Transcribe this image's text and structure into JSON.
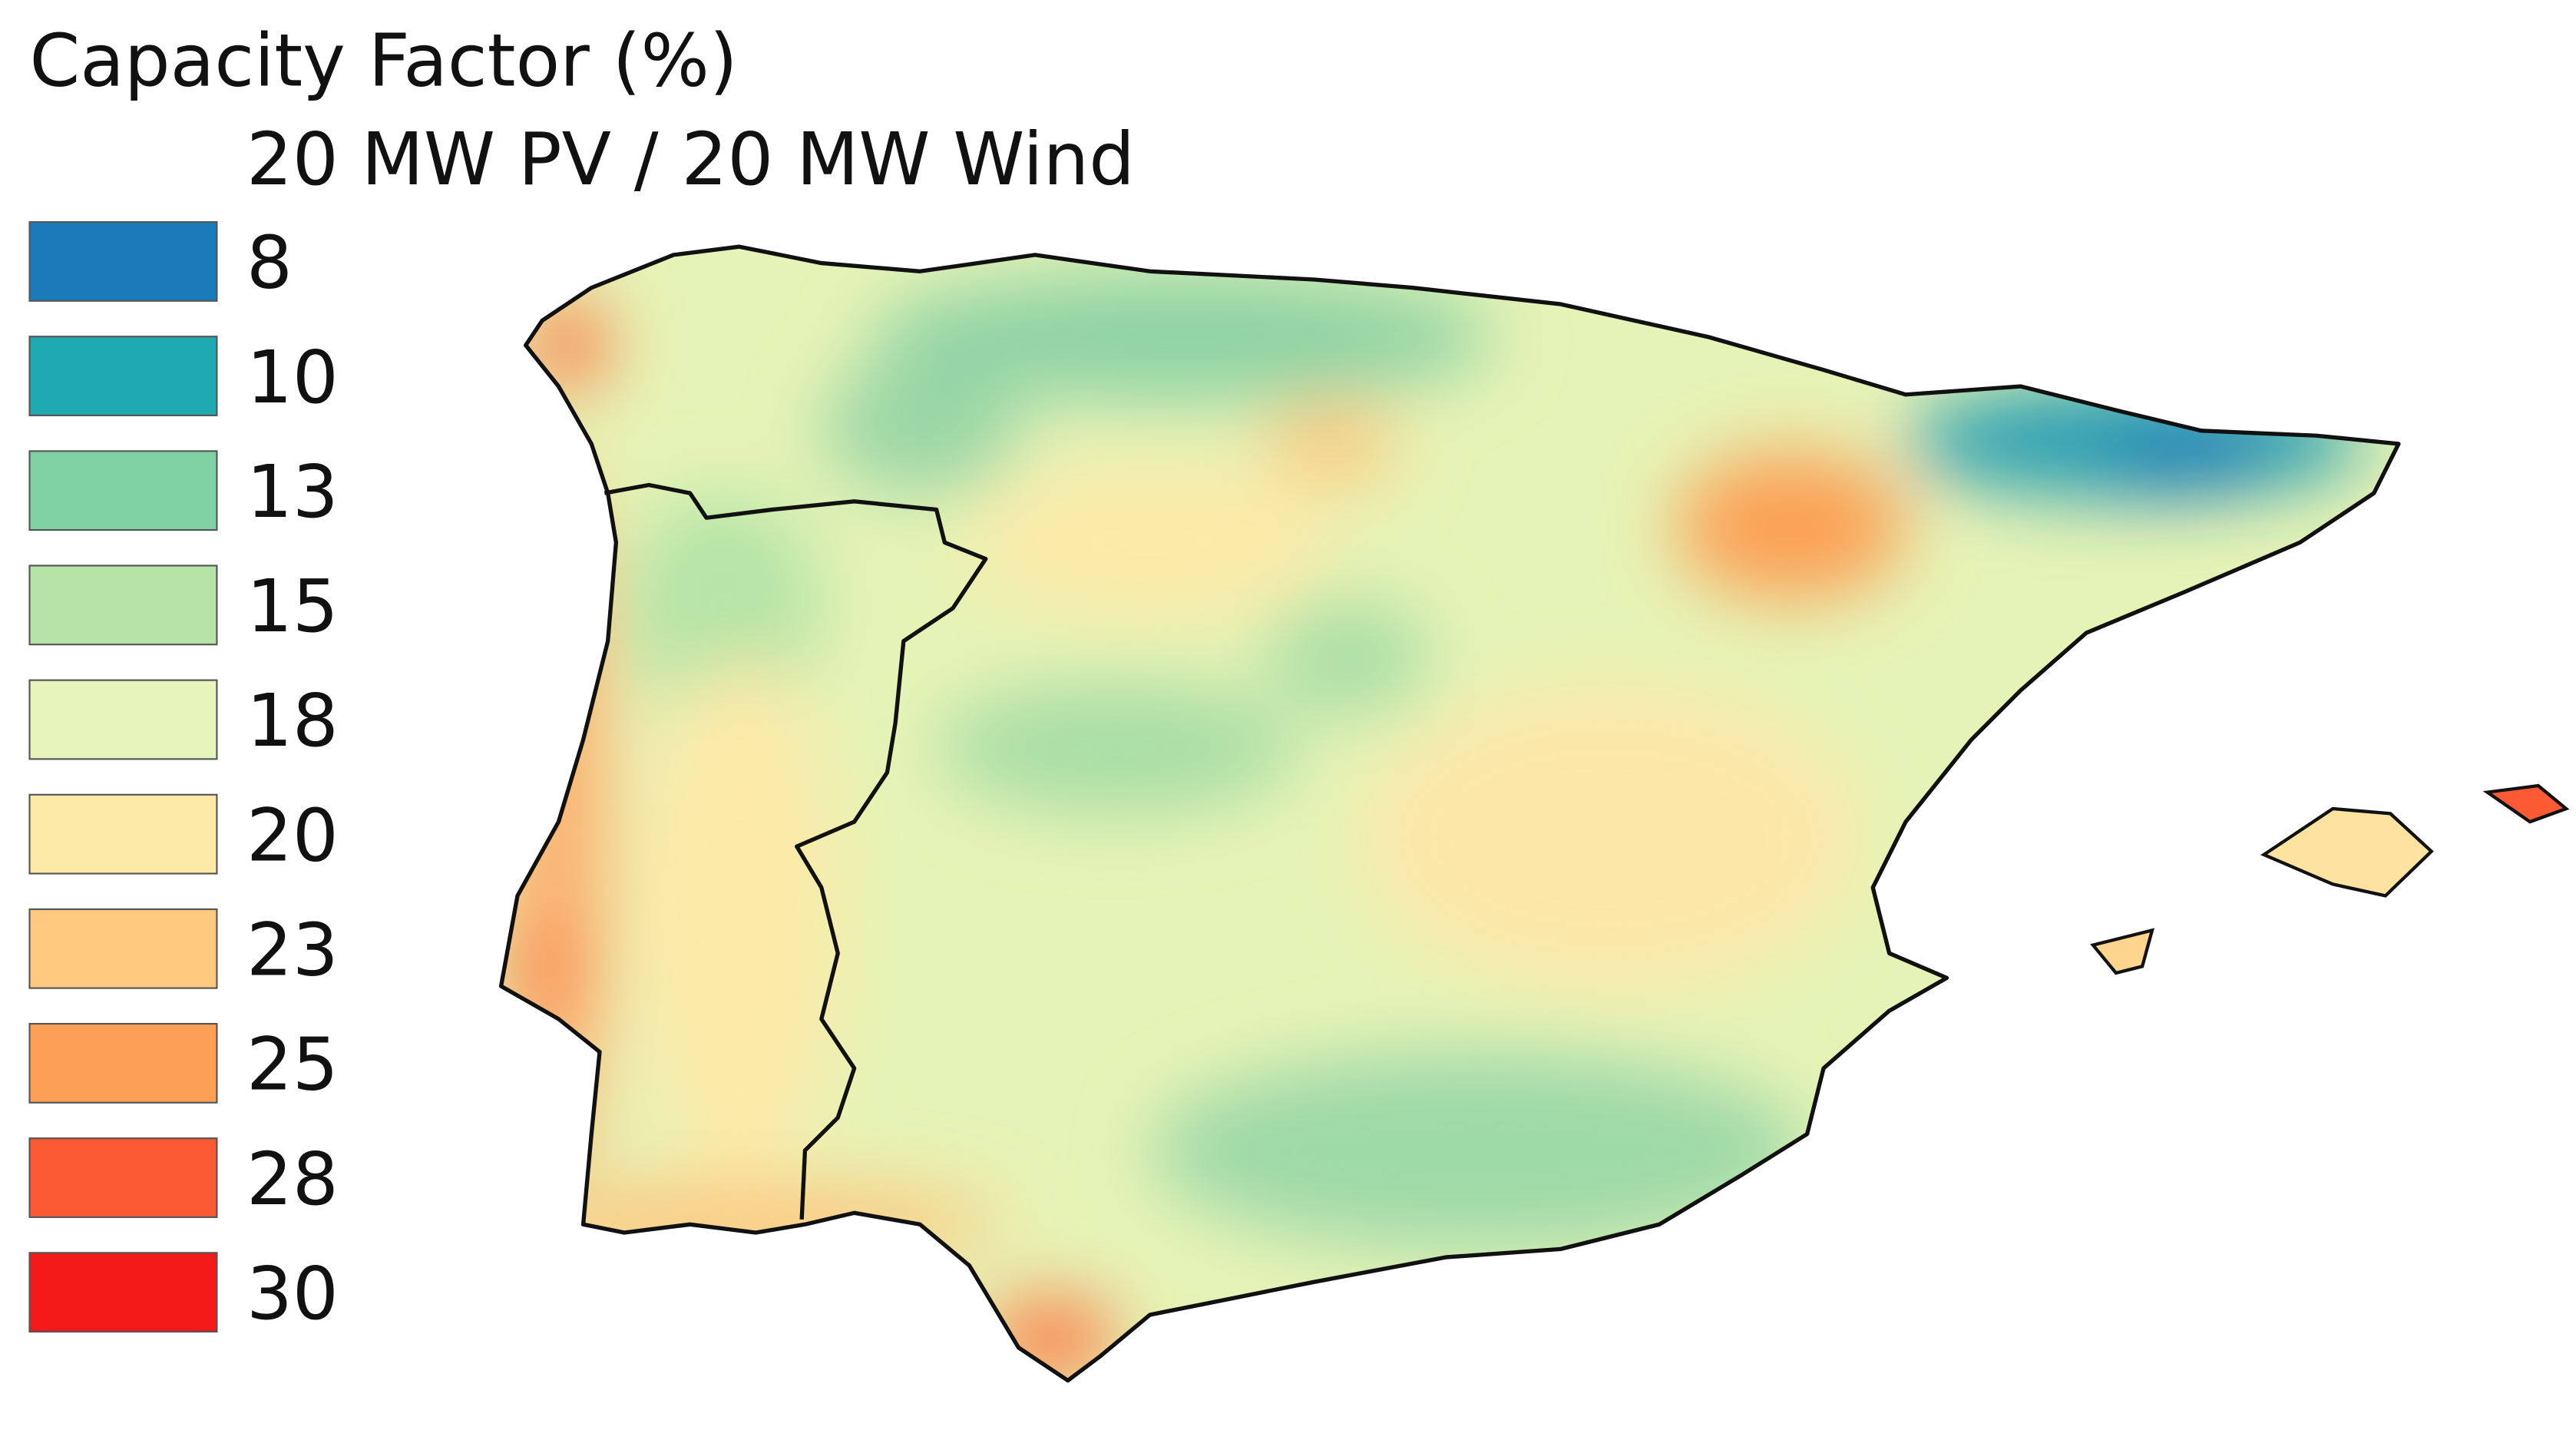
{
  "title": "Capacity Factor (%)",
  "subtitle": "20 MW PV / 20 MW Wind",
  "legend": {
    "items": [
      {
        "value": 8,
        "color": "#1a7bb8"
      },
      {
        "value": 10,
        "color": "#1eaab0"
      },
      {
        "value": 13,
        "color": "#7fd2a4"
      },
      {
        "value": 15,
        "color": "#b6e4a7"
      },
      {
        "value": 18,
        "color": "#e6f5bb"
      },
      {
        "value": 20,
        "color": "#fdeaa8"
      },
      {
        "value": 23,
        "color": "#fdca80"
      },
      {
        "value": 25,
        "color": "#fca055"
      },
      {
        "value": 28,
        "color": "#fc5a35"
      },
      {
        "value": 30,
        "color": "#f51a1a"
      }
    ]
  }
}
